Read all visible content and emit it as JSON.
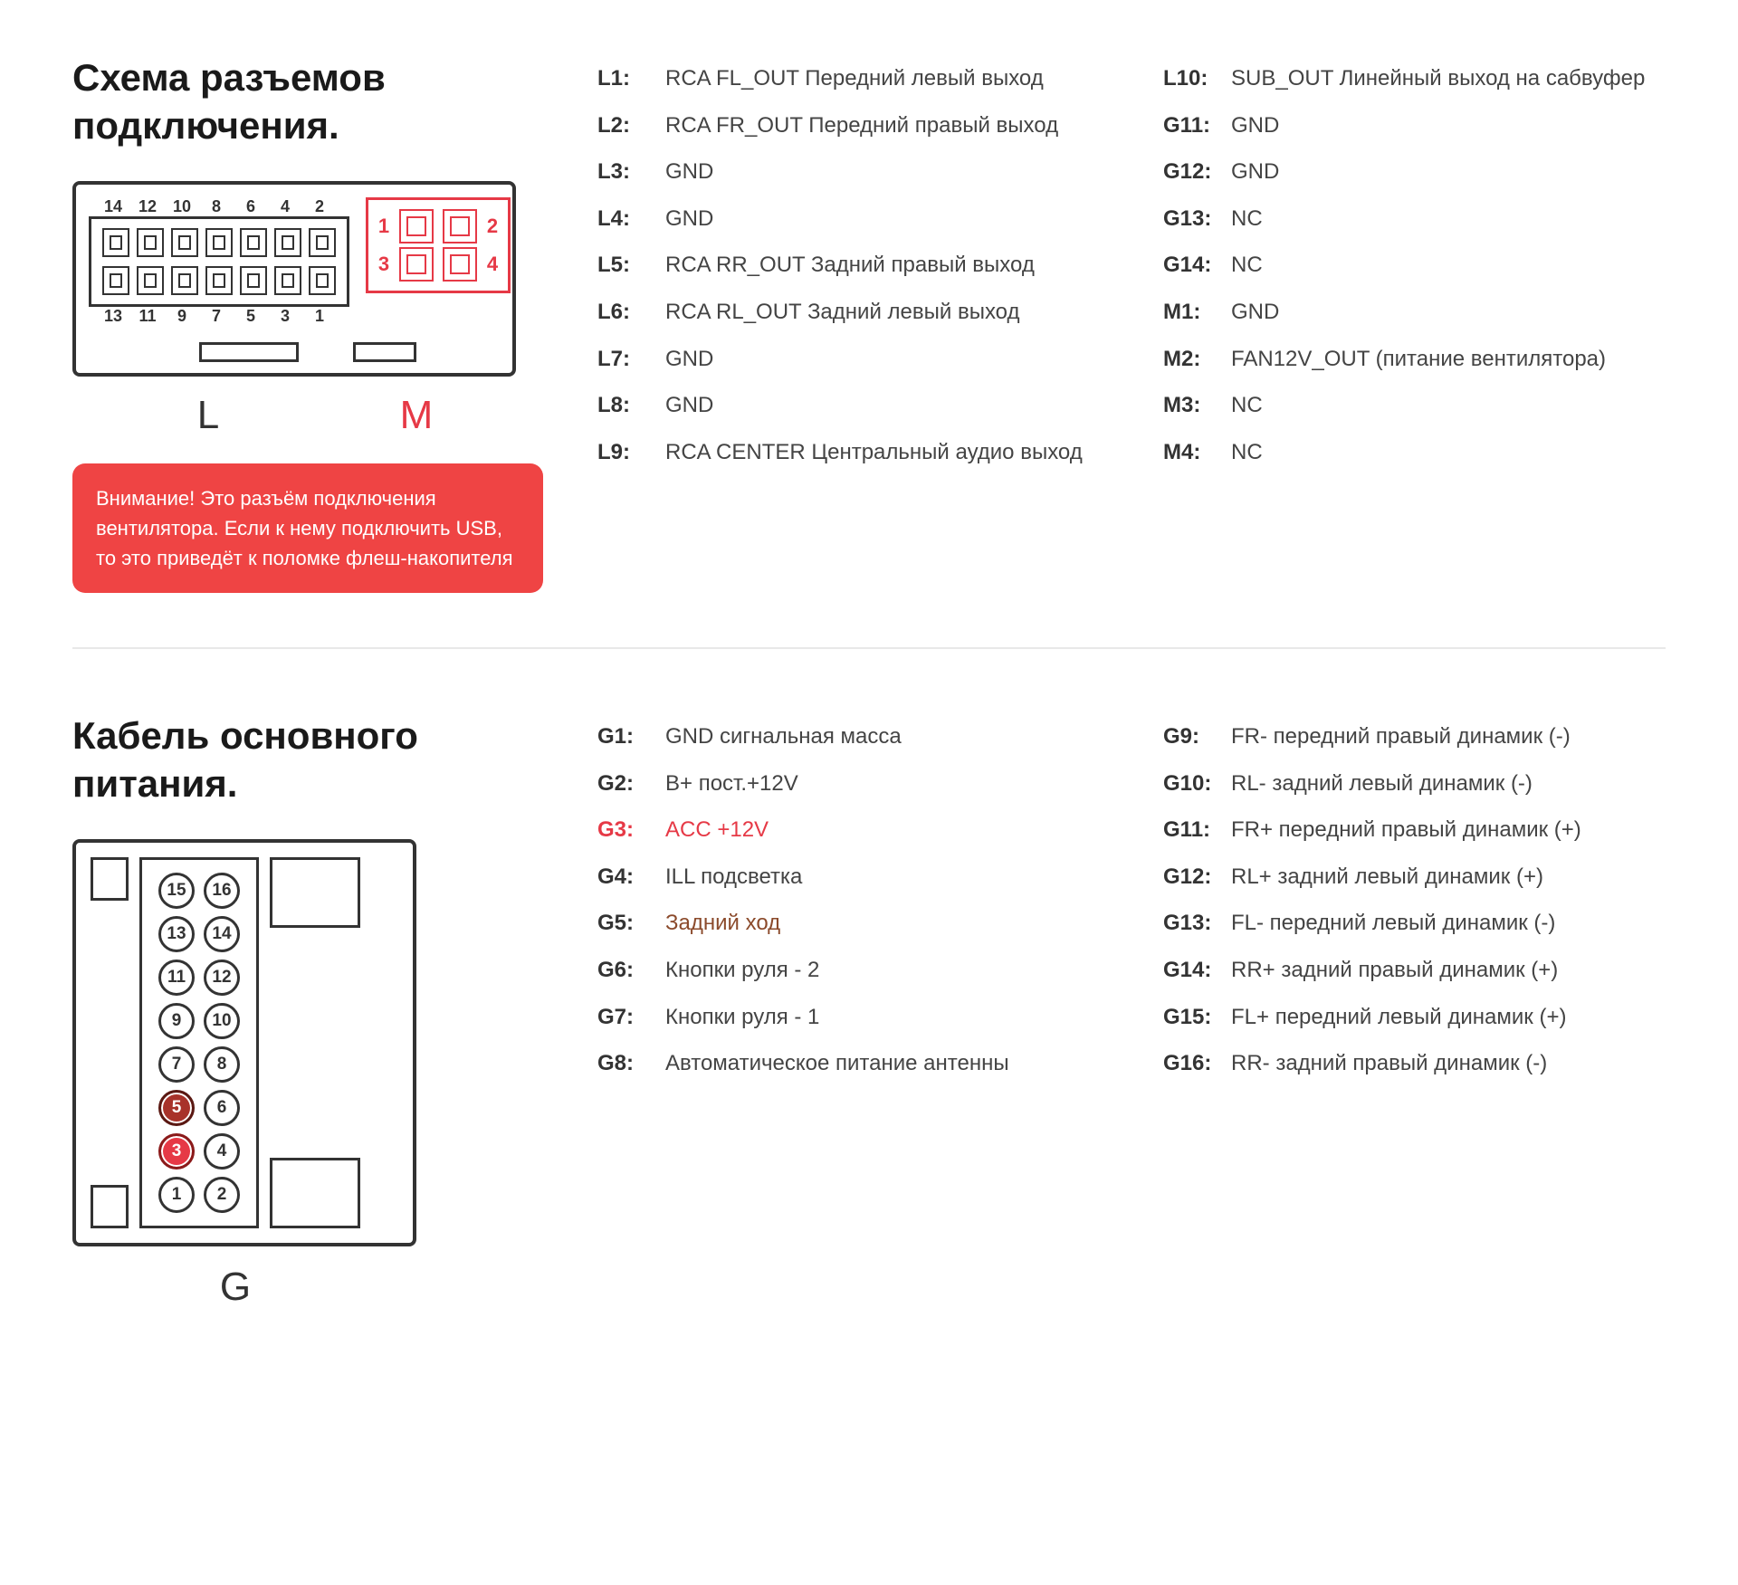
{
  "section1": {
    "title": "Схема разъемов подключения.",
    "connector_L_label": "L",
    "connector_M_label": "M",
    "L_top_pins": [
      "14",
      "12",
      "10",
      "8",
      "6",
      "4",
      "2"
    ],
    "L_bottom_pins": [
      "13",
      "11",
      "9",
      "7",
      "5",
      "3",
      "1"
    ],
    "M_pins": [
      [
        "1",
        "2"
      ],
      [
        "3",
        "4"
      ]
    ],
    "warning_text": "Внимание! Это разъём подключения вентилятора. Если к нему подключить USB, то это приведёт к поломке флеш-накопителя",
    "colors": {
      "accent_red": "#e63946",
      "text": "#333333",
      "warning_bg": "#ef4444"
    },
    "pins_col1": [
      {
        "k": "L1:",
        "v": "RCA FL_OUT Передний левый выход"
      },
      {
        "k": "L2:",
        "v": "RCA FR_OUT  Передний правый выход"
      },
      {
        "k": "L3:",
        "v": "GND"
      },
      {
        "k": "L4:",
        "v": "GND"
      },
      {
        "k": "L5:",
        "v": "RCA RR_OUT Задний правый выход"
      },
      {
        "k": "L6:",
        "v": "RCA RL_OUT Задний левый выход"
      },
      {
        "k": "L7:",
        "v": "GND"
      },
      {
        "k": "L8:",
        "v": "GND"
      },
      {
        "k": "L9:",
        "v": "RCA CENTER Центральный аудио выход"
      }
    ],
    "pins_col2": [
      {
        "k": "L10:",
        "v": "SUB_OUT Линейный выход на сабвуфер"
      },
      {
        "k": "G11:",
        "v": "GND"
      },
      {
        "k": "G12:",
        "v": "GND"
      },
      {
        "k": "G13:",
        "v": "NC"
      },
      {
        "k": "G14:",
        "v": "NC"
      },
      {
        "k": "M1:",
        "v": "GND"
      },
      {
        "k": "M2:",
        "v": "FAN12V_OUT (питание вентилятора)"
      },
      {
        "k": "M3:",
        "v": "NC"
      },
      {
        "k": "M4:",
        "v": "NC"
      }
    ]
  },
  "section2": {
    "title": "Кабель основного питания.",
    "connector_label": "G",
    "g_pins": [
      [
        "15",
        "16"
      ],
      [
        "13",
        "14"
      ],
      [
        "11",
        "12"
      ],
      [
        "9",
        "10"
      ],
      [
        "7",
        "8"
      ],
      [
        "5",
        "6"
      ],
      [
        "3",
        "4"
      ],
      [
        "1",
        "2"
      ]
    ],
    "highlight_pins": {
      "5": "hl",
      "3": "hl2"
    },
    "pins_col1": [
      {
        "k": "G1:",
        "v": "GND сигнальная масса",
        "cls": ""
      },
      {
        "k": "G2:",
        "v": "B+ пост.+12V",
        "cls": ""
      },
      {
        "k": "G3:",
        "v": "ACC +12V",
        "cls": "red"
      },
      {
        "k": "G4:",
        "v": "ILL подсветка",
        "cls": ""
      },
      {
        "k": "G5:",
        "v": "Задний ход",
        "cls": "brown"
      },
      {
        "k": "G6:",
        "v": "Кнопки руля - 2",
        "cls": ""
      },
      {
        "k": "G7:",
        "v": "Кнопки руля - 1",
        "cls": ""
      },
      {
        "k": "G8:",
        "v": "Автоматическое питание антенны",
        "cls": ""
      }
    ],
    "pins_col2": [
      {
        "k": "G9:",
        "v": "FR- передний правый динамик (-)"
      },
      {
        "k": "G10:",
        "v": "RL- задний левый динамик (-)"
      },
      {
        "k": "G11:",
        "v": "FR+ передний правый динамик (+)"
      },
      {
        "k": "G12:",
        "v": "RL+ задний левый динамик (+)"
      },
      {
        "k": "G13:",
        "v": "FL- передний левый динамик (-)"
      },
      {
        "k": "G14:",
        "v": "RR+ задний правый динамик (+)"
      },
      {
        "k": "G15:",
        "v": "FL+ передний левый динамик (+)"
      },
      {
        "k": "G16:",
        "v": "RR- задний правый динамик (-)"
      }
    ]
  }
}
